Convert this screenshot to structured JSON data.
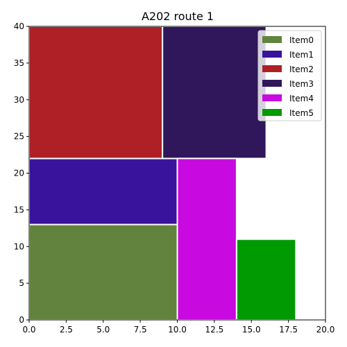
{
  "chart_data": {
    "type": "bar",
    "subtype": "rectangle-packing",
    "title": "A202 route 1",
    "xlabel": "",
    "ylabel": "",
    "xlim": [
      0,
      20
    ],
    "ylim": [
      0,
      40
    ],
    "xticks": [
      "0.0",
      "2.5",
      "5.0",
      "7.5",
      "10.0",
      "12.5",
      "15.0",
      "17.5",
      "20.0"
    ],
    "yticks": [
      "0",
      "5",
      "10",
      "15",
      "20",
      "25",
      "30",
      "35",
      "40"
    ],
    "legend_position": "top-right",
    "items": [
      {
        "name": "Item0",
        "x": 0,
        "y": 0,
        "width": 10,
        "height": 13,
        "color": "#62833e"
      },
      {
        "name": "Item1",
        "x": 0,
        "y": 13,
        "width": 10,
        "height": 9,
        "color": "#39139b"
      },
      {
        "name": "Item2",
        "x": 0,
        "y": 22,
        "width": 9,
        "height": 18,
        "color": "#ae1f26"
      },
      {
        "name": "Item3",
        "x": 9,
        "y": 22,
        "width": 7,
        "height": 18,
        "color": "#30165b"
      },
      {
        "name": "Item4",
        "x": 10,
        "y": 0,
        "width": 4,
        "height": 22,
        "color": "#c80ae0"
      },
      {
        "name": "Item5",
        "x": 14,
        "y": 0,
        "width": 4,
        "height": 11,
        "color": "#019a03"
      }
    ]
  }
}
